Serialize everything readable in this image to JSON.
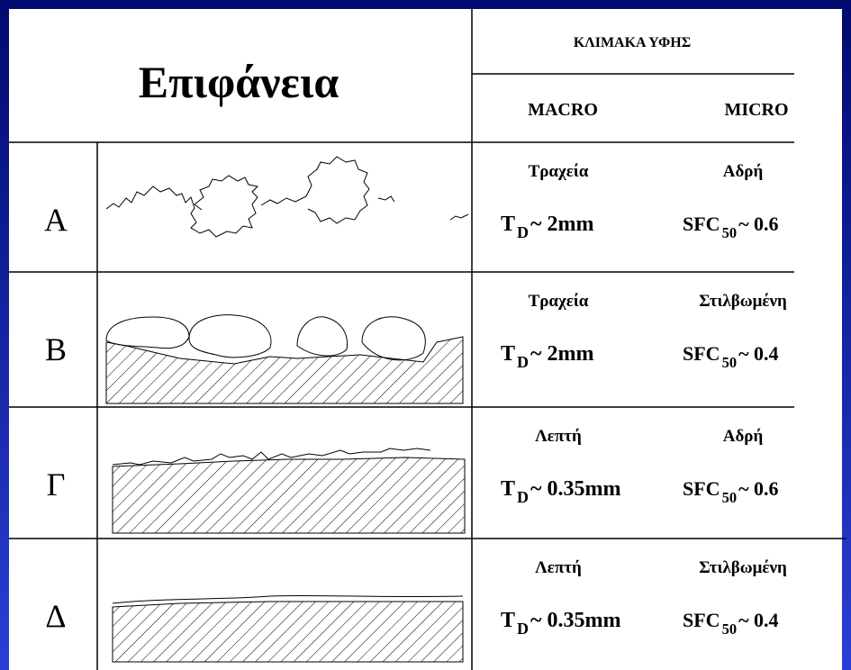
{
  "header": {
    "title": "Επιφάνεια",
    "scale": "ΚΛΙΜΑΚΑ ΥΦΗΣ",
    "macro": "MACRO",
    "micro": "MICRO"
  },
  "rows": [
    {
      "label": "Α",
      "macro": {
        "name": "Τραχεία",
        "symbol": "T",
        "sub": "D",
        "value": "~ 2mm"
      },
      "micro": {
        "name": "Αδρή",
        "symbol": "SFC",
        "sub": "50",
        "value": "~ 0.6"
      }
    },
    {
      "label": "Β",
      "macro": {
        "name": "Τραχεία",
        "symbol": "T",
        "sub": "D",
        "value": "~ 2mm"
      },
      "micro": {
        "name": "Στιλβωμένη",
        "symbol": "SFC",
        "sub": "50",
        "value": "~ 0.4"
      }
    },
    {
      "label": "Γ",
      "macro": {
        "name": "Λεπτή",
        "symbol": "T",
        "sub": "D",
        "value": "~ 0.35mm"
      },
      "micro": {
        "name": "Αδρή",
        "symbol": "SFC",
        "sub": "50",
        "value": "~ 0.6"
      }
    },
    {
      "label": "Δ",
      "macro": {
        "name": "Λεπτή",
        "symbol": "T",
        "sub": "D",
        "value": "~ 0.35mm"
      },
      "micro": {
        "name": "Στιλβωμένη",
        "symbol": "SFC",
        "sub": "50",
        "value": "~ 0.4"
      }
    }
  ]
}
